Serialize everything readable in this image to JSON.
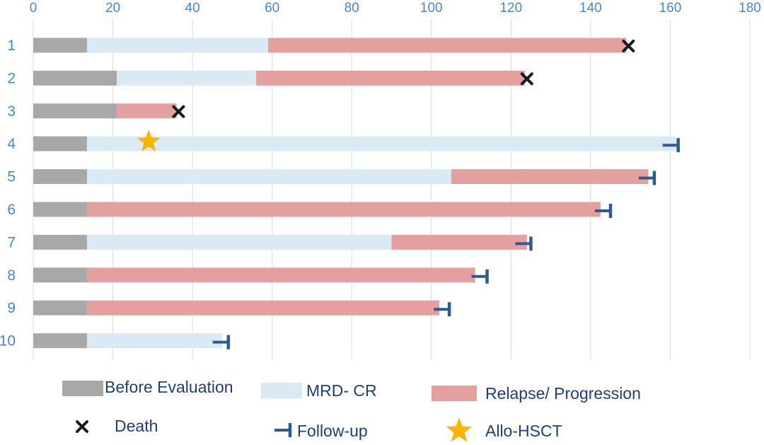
{
  "chart_data": {
    "type": "bar",
    "orientation": "horizontal",
    "stacked": true,
    "title": "",
    "xlabel": "",
    "ylabel": "",
    "xlim": [
      0,
      180
    ],
    "x_ticks": [
      0,
      20,
      40,
      60,
      80,
      100,
      120,
      140,
      160,
      180
    ],
    "x_axis_position": "top",
    "grid": "vertical",
    "categories": [
      "1",
      "2",
      "3",
      "4",
      "5",
      "6",
      "7",
      "8",
      "9",
      "10"
    ],
    "series": [
      {
        "name": "Before Evaluation",
        "color": "#a8a8a8",
        "values": [
          13.5,
          21,
          21,
          13.5,
          13.5,
          13.5,
          13.5,
          13.5,
          13.5,
          13.5
        ]
      },
      {
        "name": "MRD- CR",
        "color": "#daeaf4",
        "values": [
          45.5,
          35,
          0,
          148,
          91.5,
          0,
          76.5,
          0,
          0,
          34
        ]
      },
      {
        "name": "Relapse/ Progression",
        "color": "#e3a09e",
        "values": [
          90,
          67.5,
          15,
          0,
          49.5,
          129,
          34,
          97.5,
          88.5,
          0
        ]
      }
    ],
    "events": {
      "death": [
        {
          "category": "1",
          "x": 149.5
        },
        {
          "category": "2",
          "x": 124
        },
        {
          "category": "3",
          "x": 36.5
        }
      ],
      "follow_up": [
        {
          "category": "4",
          "x": 162
        },
        {
          "category": "5",
          "x": 156
        },
        {
          "category": "6",
          "x": 145
        },
        {
          "category": "7",
          "x": 125
        },
        {
          "category": "8",
          "x": 114
        },
        {
          "category": "9",
          "x": 104.5
        },
        {
          "category": "10",
          "x": 49
        }
      ],
      "allo_hsct": [
        {
          "category": "4",
          "x": 29
        }
      ]
    },
    "legend": {
      "placement": "bottom",
      "items": [
        {
          "label": "Before Evaluation",
          "symbol": "swatch",
          "color": "#a8a8a8"
        },
        {
          "label": "MRD- CR",
          "symbol": "swatch",
          "color": "#daeaf4"
        },
        {
          "label": "Relapse/ Progression",
          "symbol": "swatch",
          "color": "#e3a09e"
        },
        {
          "label": "Death",
          "symbol": "cross-icon",
          "color": "#1a1a1a"
        },
        {
          "label": "Follow-up",
          "symbol": "follow-up-bracket-icon",
          "color": "#2e5a8e"
        },
        {
          "label": "Allo-HSCT",
          "symbol": "star-icon",
          "color": "#f7b500"
        }
      ]
    }
  }
}
